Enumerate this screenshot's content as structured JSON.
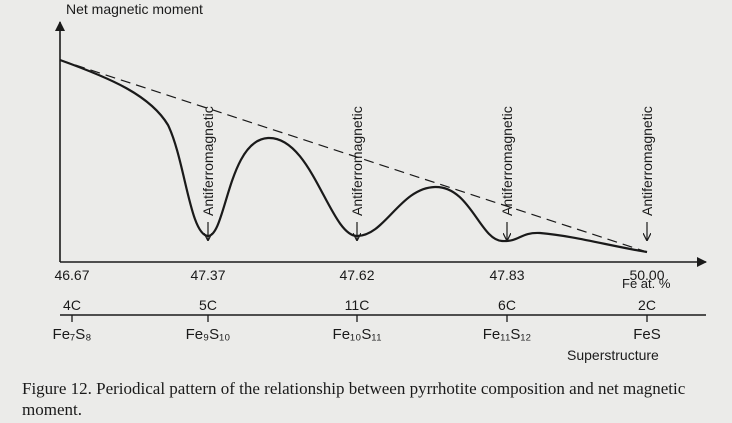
{
  "figure": {
    "y_label": "Net magnetic moment",
    "x_label": "Fe at. %",
    "compositions": [
      {
        "fe": "46.67",
        "superstructure": "4C",
        "formula": "Fe₇S₈",
        "state": null
      },
      {
        "fe": "47.37",
        "superstructure": "5C",
        "formula": "Fe₉S₁₀",
        "state": "Antiferromagnetic"
      },
      {
        "fe": "47.62",
        "superstructure": "11C",
        "formula": "Fe₁₀S₁₁",
        "state": "Antiferromagnetic"
      },
      {
        "fe": "47.83",
        "superstructure": "6C",
        "formula": "Fe₁₁S₁₂",
        "state": "Antiferromagnetic"
      },
      {
        "fe": "50.00",
        "superstructure": "2C",
        "formula": "FeS",
        "state": "Antiferromagnetic"
      }
    ],
    "superstructure_label": "Superstructure",
    "caption": "Figure 12.  Periodical pattern of the relationship between pyrrhotite composition and net magnetic moment."
  }
}
